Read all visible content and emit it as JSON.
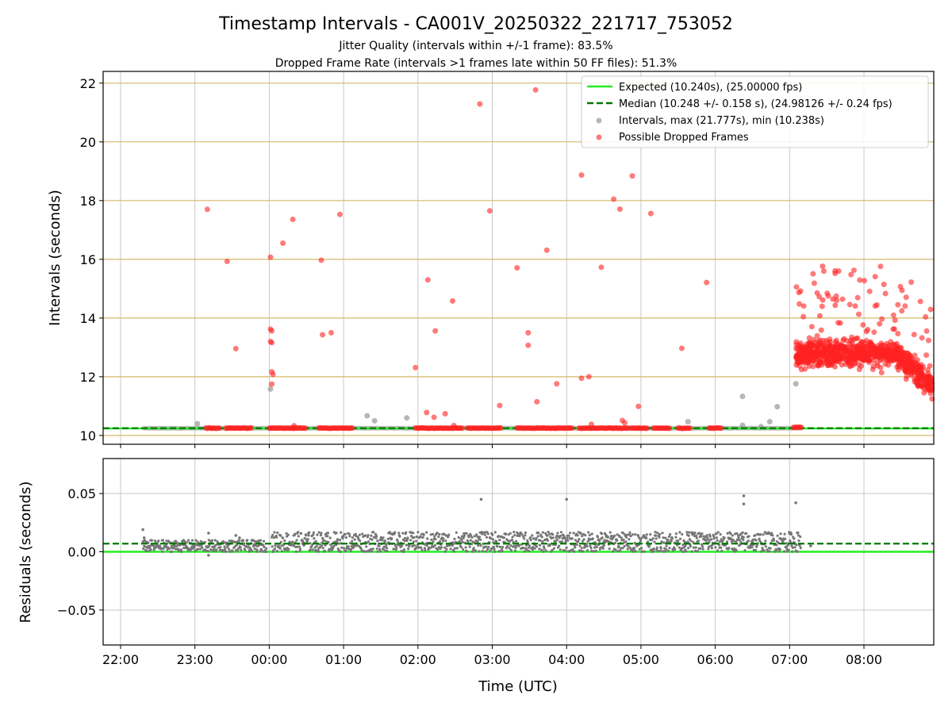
{
  "chart_data": {
    "type": "scatter",
    "title": "Timestamp Intervals - CA001V_20250322_221717_753052",
    "subtitle_lines": [
      "Jitter Quality (intervals within +/-1 frame): 83.5%",
      "Dropped Frame Rate (intervals >1 frames late within 50 FF files): 51.3%"
    ],
    "xlabel": "Time (UTC)",
    "x_tick_labels": [
      "22:00",
      "23:00",
      "00:00",
      "01:00",
      "02:00",
      "03:00",
      "04:00",
      "05:00",
      "06:00",
      "07:00",
      "08:00"
    ],
    "top_panel": {
      "ylabel": "Intervals (seconds)",
      "ylim": [
        9.7,
        22.4
      ],
      "y_ticks": [
        10,
        12,
        14,
        16,
        18,
        20,
        22
      ],
      "grid": true,
      "legend_placement": "top-right",
      "expected_interval": 10.24,
      "median_interval": 10.248,
      "legend": [
        "Expected (10.240s), (25.00000 fps)",
        "Median (10.248 +/- 0.158 s), (24.98126 +/- 0.24 fps)",
        "Intervals, max (21.777s), min (10.238s)",
        "Possible Dropped Frames"
      ],
      "intervals_gray": [
        [
          "23:02",
          10.4
        ],
        [
          "00:01",
          11.58
        ],
        [
          "01:19",
          10.67
        ],
        [
          "01:25",
          10.5
        ],
        [
          "01:51",
          10.6
        ],
        [
          "05:38",
          10.47
        ],
        [
          "06:22",
          11.33
        ],
        [
          "06:22",
          10.35
        ],
        [
          "06:37",
          10.3
        ],
        [
          "06:44",
          10.47
        ],
        [
          "06:50",
          10.98
        ],
        [
          "07:05",
          11.76
        ]
      ],
      "dropped_frames_isolated": [
        [
          "23:10",
          17.7
        ],
        [
          "23:26",
          15.93
        ],
        [
          "23:33",
          12.96
        ],
        [
          "00:01",
          16.07
        ],
        [
          "00:01",
          13.62
        ],
        [
          "00:02",
          13.56
        ],
        [
          "00:01",
          13.2
        ],
        [
          "00:02",
          13.16
        ],
        [
          "00:02",
          12.17
        ],
        [
          "00:03",
          12.08
        ],
        [
          "00:02",
          11.75
        ],
        [
          "00:11",
          16.55
        ],
        [
          "00:19",
          17.36
        ],
        [
          "00:20",
          10.33
        ],
        [
          "00:42",
          15.97
        ],
        [
          "00:43",
          13.43
        ],
        [
          "00:50",
          13.5
        ],
        [
          "00:57",
          17.53
        ],
        [
          "01:58",
          12.31
        ],
        [
          "02:07",
          10.78
        ],
        [
          "02:08",
          15.3
        ],
        [
          "02:13",
          10.62
        ],
        [
          "02:14",
          13.56
        ],
        [
          "02:22",
          10.74
        ],
        [
          "02:28",
          14.58
        ],
        [
          "02:29",
          10.34
        ],
        [
          "02:50",
          21.29
        ],
        [
          "02:58",
          17.65
        ],
        [
          "03:06",
          11.02
        ],
        [
          "03:20",
          15.71
        ],
        [
          "03:29",
          13.5
        ],
        [
          "03:29",
          13.07
        ],
        [
          "03:35",
          21.77
        ],
        [
          "03:36",
          11.15
        ],
        [
          "03:44",
          16.31
        ],
        [
          "03:52",
          11.76
        ],
        [
          "04:12",
          18.87
        ],
        [
          "04:12",
          11.95
        ],
        [
          "04:18",
          12.0
        ],
        [
          "04:20",
          10.38
        ],
        [
          "04:28",
          15.73
        ],
        [
          "04:38",
          18.05
        ],
        [
          "04:43",
          17.71
        ],
        [
          "04:45",
          10.51
        ],
        [
          "04:47",
          10.43
        ],
        [
          "04:53",
          18.84
        ],
        [
          "04:58",
          10.99
        ],
        [
          "05:08",
          17.56
        ],
        [
          "05:33",
          12.97
        ],
        [
          "05:53",
          15.21
        ]
      ],
      "dropped_frames_baseline_clusters": [
        [
          "23:09",
          "23:20",
          10.25
        ],
        [
          "23:25",
          "23:46",
          10.25
        ],
        [
          "00:00",
          "00:30",
          10.25
        ],
        [
          "00:40",
          "01:08",
          10.25
        ],
        [
          "01:58",
          "02:36",
          10.25
        ],
        [
          "02:40",
          "03:08",
          10.25
        ],
        [
          "03:20",
          "04:05",
          10.25
        ],
        [
          "04:10",
          "04:50",
          10.25
        ],
        [
          "04:52",
          "05:05",
          10.25
        ],
        [
          "05:10",
          "05:24",
          10.25
        ],
        [
          "05:30",
          "05:40",
          10.25
        ],
        [
          "05:55",
          "06:05",
          10.25
        ],
        [
          "07:03",
          "07:10",
          10.28
        ]
      ],
      "dropped_frames_dense_region": {
        "x_start": "07:05",
        "x_end": "08:58",
        "y_range": [
          10.3,
          16.0
        ],
        "typical_level": 12.8,
        "tail_level_at_end": 11.5
      }
    },
    "bottom_panel": {
      "ylabel": "Residuals (seconds)",
      "ylim": [
        -0.08,
        0.08
      ],
      "y_ticks": [
        0.05,
        0.0,
        -0.05
      ],
      "y_tick_labels": [
        "0.05",
        "0.00",
        "−0.05"
      ],
      "grid": true,
      "zero_line": 0.0,
      "median_line": 0.007,
      "residual_outliers": [
        [
          "22:18",
          0.019
        ],
        [
          "22:19",
          0.012
        ],
        [
          "23:11",
          0.016
        ],
        [
          "23:11",
          -0.003
        ],
        [
          "23:33",
          0.014
        ],
        [
          "23:36",
          0.012
        ],
        [
          "02:51",
          0.045
        ],
        [
          "04:00",
          0.045
        ],
        [
          "06:23",
          0.048
        ],
        [
          "06:23",
          0.041
        ],
        [
          "07:05",
          0.042
        ],
        [
          "07:17",
          0.005
        ]
      ],
      "residual_bands": [
        [
          "22:18",
          "23:58",
          0.0,
          0.01
        ],
        [
          "00:02",
          "07:09",
          0.0,
          0.017
        ]
      ]
    },
    "colors": {
      "expected_line": "#22ee22",
      "median_line": "#007700",
      "intervals": "#999999",
      "dropped_frames": "#ff2222",
      "residuals": "#777777",
      "horizontal_grid_top": "#d4b96a",
      "vertical_grid": "#c8c8c8"
    }
  }
}
